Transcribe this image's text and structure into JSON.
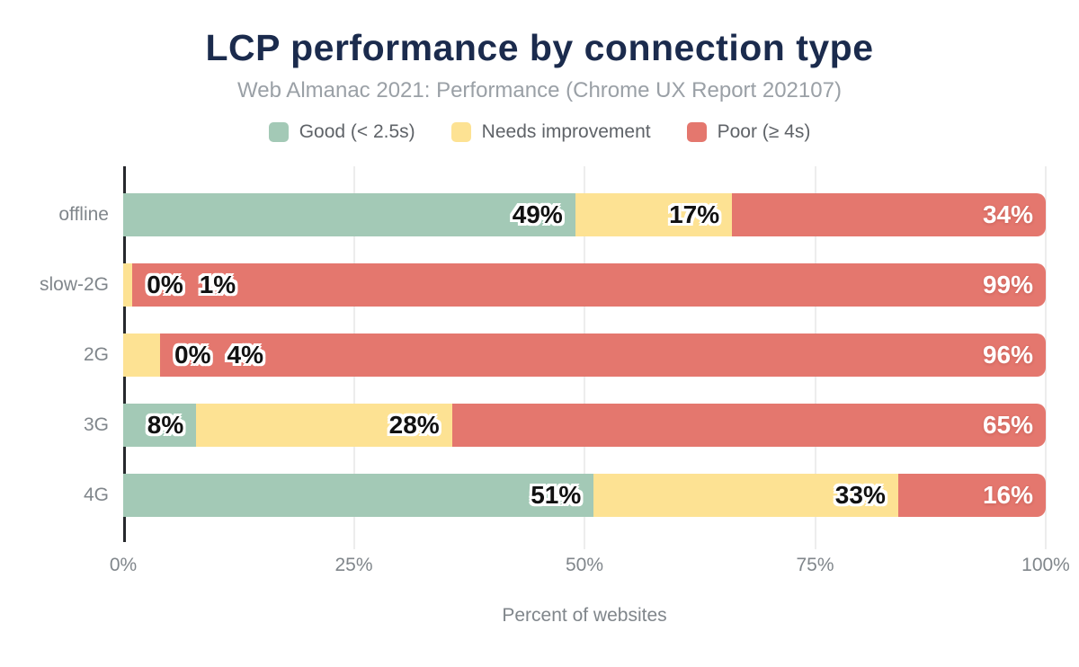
{
  "chart_data": {
    "type": "bar",
    "orientation": "horizontal",
    "stacked": true,
    "title": "LCP performance by connection type",
    "subtitle": "Web Almanac 2021: Performance (Chrome UX Report 202107)",
    "xlabel": "Percent of websites",
    "categories": [
      "offline",
      "slow-2G",
      "2G",
      "3G",
      "4G"
    ],
    "series": [
      {
        "name": "Good (< 2.5s)",
        "color": "#a3c9b6",
        "label_style": "dark",
        "values": [
          49,
          0,
          0,
          8,
          51
        ]
      },
      {
        "name": "Needs improvement",
        "color": "#fde293",
        "label_style": "dark",
        "values": [
          17,
          1,
          4,
          28,
          33
        ]
      },
      {
        "name": "Poor (≥ 4s)",
        "color": "#e4776e",
        "label_style": "white",
        "values": [
          34,
          99,
          96,
          65,
          16
        ]
      }
    ],
    "value_suffix": "%",
    "x_ticks": [
      "0%",
      "25%",
      "50%",
      "75%",
      "100%"
    ],
    "xlim": [
      0,
      100
    ],
    "grid": true,
    "legend_position": "top"
  },
  "colors": {
    "title": "#1b2b4d",
    "subtitle": "#9aa0a6",
    "legend_text": "#5f6368",
    "axis_text": "#80868b",
    "gridline": "#ededed",
    "axis_line": "#26282c",
    "background": "#ffffff"
  }
}
